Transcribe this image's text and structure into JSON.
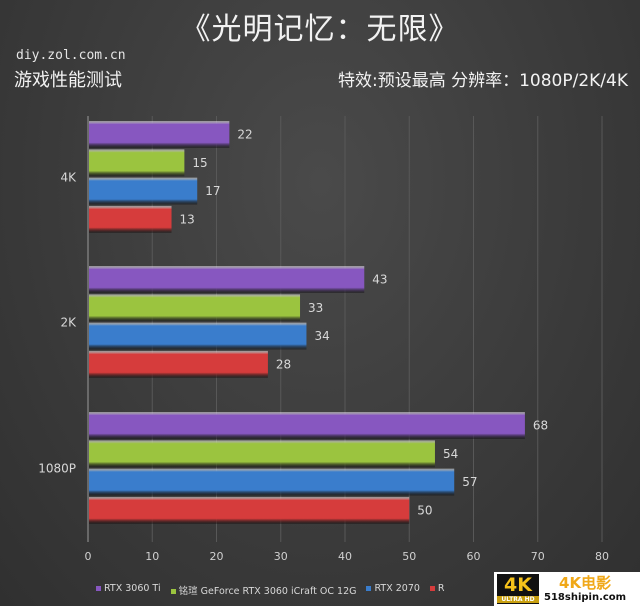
{
  "header": {
    "title": "《光明记忆：无限》",
    "site": "diy.zol.com.cn",
    "subtitle": "游戏性能测试",
    "settings": "特效:预设最高  分辨率：1080P/2K/4K"
  },
  "chart_data": {
    "type": "bar",
    "orientation": "horizontal",
    "categories": [
      "4K",
      "2K",
      "1080P"
    ],
    "series": [
      {
        "name": "RTX 3060 Ti",
        "color": "#8757c0",
        "values": [
          22,
          43,
          68
        ]
      },
      {
        "name": "铭瑄 GeForce RTX 3060 iCraft OC 12G",
        "color": "#9bc43f",
        "values": [
          15,
          33,
          54
        ]
      },
      {
        "name": "RTX 2070",
        "color": "#3a7dcc",
        "values": [
          17,
          34,
          57
        ]
      },
      {
        "name": "R",
        "color": "#d63c3c",
        "values": [
          13,
          28,
          50
        ]
      }
    ],
    "xlim": [
      0,
      80
    ],
    "xticks": [
      0,
      10,
      20,
      30,
      40,
      50,
      60,
      70,
      80
    ],
    "grid": true,
    "legend": "bottom",
    "data_labels": true
  },
  "watermark": {
    "logo": "4K ULTRA HD",
    "name": "4K电影",
    "url": "518shipin.com"
  }
}
